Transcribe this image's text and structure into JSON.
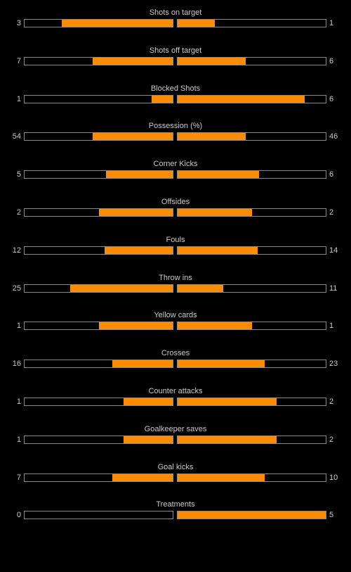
{
  "colors": {
    "background": "#000000",
    "bar_fill": "#ff8c00",
    "bar_border": "#8a8a8a",
    "text": "#c8c8c8"
  },
  "stats": [
    {
      "label": "Shots on target",
      "home": "3",
      "away": "1",
      "home_fill": 0.75,
      "away_fill": 0.25
    },
    {
      "label": "Shots off target",
      "home": "7",
      "away": "6",
      "home_fill": 0.54,
      "away_fill": 0.46
    },
    {
      "label": "Blocked Shots",
      "home": "1",
      "away": "6",
      "home_fill": 0.14,
      "away_fill": 0.86
    },
    {
      "label": "Possession (%)",
      "home": "54",
      "away": "46",
      "home_fill": 0.54,
      "away_fill": 0.46
    },
    {
      "label": "Corner Kicks",
      "home": "5",
      "away": "6",
      "home_fill": 0.45,
      "away_fill": 0.55
    },
    {
      "label": "Offsides",
      "home": "2",
      "away": "2",
      "home_fill": 0.5,
      "away_fill": 0.5
    },
    {
      "label": "Fouls",
      "home": "12",
      "away": "14",
      "home_fill": 0.46,
      "away_fill": 0.54
    },
    {
      "label": "Throw ins",
      "home": "25",
      "away": "11",
      "home_fill": 0.69,
      "away_fill": 0.31
    },
    {
      "label": "Yellow cards",
      "home": "1",
      "away": "1",
      "home_fill": 0.5,
      "away_fill": 0.5
    },
    {
      "label": "Crosses",
      "home": "16",
      "away": "23",
      "home_fill": 0.41,
      "away_fill": 0.59
    },
    {
      "label": "Counter attacks",
      "home": "1",
      "away": "2",
      "home_fill": 0.33,
      "away_fill": 0.67
    },
    {
      "label": "Goalkeeper saves",
      "home": "1",
      "away": "2",
      "home_fill": 0.33,
      "away_fill": 0.67
    },
    {
      "label": "Goal kicks",
      "home": "7",
      "away": "10",
      "home_fill": 0.41,
      "away_fill": 0.59
    },
    {
      "label": "Treatments",
      "home": "0",
      "away": "5",
      "home_fill": 0.0,
      "away_fill": 1.0
    }
  ]
}
